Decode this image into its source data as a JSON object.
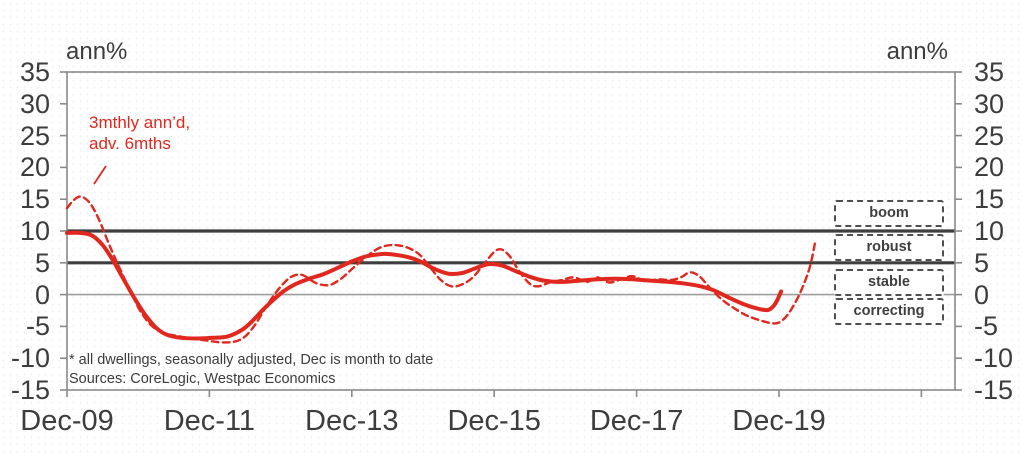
{
  "chart_data": {
    "type": "line",
    "title_left": "ann%",
    "title_right": "ann%",
    "ylim": [
      -15,
      35
    ],
    "y_ticks": [
      35,
      30,
      25,
      20,
      15,
      10,
      5,
      0,
      -5,
      -10,
      -15
    ],
    "x_ticks": [
      {
        "label": "Dec-09",
        "year": 0
      },
      {
        "label": "Dec-11",
        "year": 2
      },
      {
        "label": "Dec-13",
        "year": 4
      },
      {
        "label": "Dec-15",
        "year": 6
      },
      {
        "label": "Dec-17",
        "year": 8
      },
      {
        "label": "Dec-19",
        "year": 10
      },
      {
        "label": "",
        "year": 12
      }
    ],
    "x_unit": "years after Dec-09",
    "reference_lines": [
      {
        "value": 10,
        "weight": "thick"
      },
      {
        "value": 5,
        "weight": "thick"
      },
      {
        "value": 0,
        "weight": "thin"
      }
    ],
    "zones": [
      {
        "label": "boom",
        "center": 12.8
      },
      {
        "label": "robust",
        "center": 7.4
      },
      {
        "label": "stable",
        "center": 1.9
      },
      {
        "label": "correcting",
        "center": -2.7
      }
    ],
    "annotation": {
      "text_lines": [
        "3mthly ann’d,",
        "adv. 6mths"
      ]
    },
    "footnotes": [
      "* all dwellings, seasonally adjusted, Dec is month to date",
      "Sources: CoreLogic, Westpac Economics"
    ],
    "series": [
      {
        "label": "",
        "line": "solid",
        "points": [
          [
            0,
            9.7
          ],
          [
            0.18,
            9.7
          ],
          [
            0.35,
            9.3
          ],
          [
            0.5,
            7.8
          ],
          [
            0.65,
            5.3
          ],
          [
            0.8,
            2.3
          ],
          [
            0.95,
            -0.6
          ],
          [
            1.1,
            -3.2
          ],
          [
            1.25,
            -5.2
          ],
          [
            1.4,
            -6.3
          ],
          [
            1.6,
            -6.8
          ],
          [
            1.85,
            -6.9
          ],
          [
            2.05,
            -6.8
          ],
          [
            2.25,
            -6.6
          ],
          [
            2.45,
            -5.6
          ],
          [
            2.6,
            -4.2
          ],
          [
            2.75,
            -2.4
          ],
          [
            2.9,
            -0.8
          ],
          [
            3.05,
            0.6
          ],
          [
            3.2,
            1.6
          ],
          [
            3.4,
            2.5
          ],
          [
            3.6,
            3.2
          ],
          [
            3.8,
            4.2
          ],
          [
            4.0,
            5.2
          ],
          [
            4.2,
            6.0
          ],
          [
            4.45,
            6.4
          ],
          [
            4.65,
            6.2
          ],
          [
            4.85,
            5.7
          ],
          [
            5.0,
            5.0
          ],
          [
            5.15,
            4.1
          ],
          [
            5.35,
            3.3
          ],
          [
            5.55,
            3.4
          ],
          [
            5.75,
            4.2
          ],
          [
            5.92,
            4.8
          ],
          [
            6.1,
            4.6
          ],
          [
            6.3,
            3.7
          ],
          [
            6.5,
            2.8
          ],
          [
            6.7,
            2.2
          ],
          [
            6.95,
            2.0
          ],
          [
            7.2,
            2.2
          ],
          [
            7.45,
            2.4
          ],
          [
            7.7,
            2.5
          ],
          [
            7.95,
            2.4
          ],
          [
            8.2,
            2.2
          ],
          [
            8.45,
            2.0
          ],
          [
            8.7,
            1.7
          ],
          [
            8.9,
            1.3
          ],
          [
            9.1,
            0.6
          ],
          [
            9.3,
            -0.5
          ],
          [
            9.5,
            -1.5
          ],
          [
            9.7,
            -2.2
          ],
          [
            9.85,
            -2.4
          ],
          [
            9.95,
            -1.4
          ],
          [
            10.03,
            0.5
          ]
        ]
      },
      {
        "label": "3mthly ann’d, adv. 6mths",
        "line": "dashed",
        "points": [
          [
            0,
            13.6
          ],
          [
            0.1,
            14.9
          ],
          [
            0.2,
            15.4
          ],
          [
            0.32,
            14.4
          ],
          [
            0.45,
            11.8
          ],
          [
            0.58,
            8.2
          ],
          [
            0.72,
            4.6
          ],
          [
            0.88,
            0.8
          ],
          [
            1.02,
            -2.4
          ],
          [
            1.18,
            -4.8
          ],
          [
            1.35,
            -6.0
          ],
          [
            1.55,
            -6.5
          ],
          [
            1.75,
            -6.9
          ],
          [
            1.95,
            -7.2
          ],
          [
            2.15,
            -7.5
          ],
          [
            2.35,
            -7.4
          ],
          [
            2.5,
            -6.6
          ],
          [
            2.65,
            -4.6
          ],
          [
            2.78,
            -2.2
          ],
          [
            2.9,
            -0.2
          ],
          [
            3.02,
            1.5
          ],
          [
            3.15,
            2.8
          ],
          [
            3.3,
            3.1
          ],
          [
            3.5,
            1.8
          ],
          [
            3.68,
            1.5
          ],
          [
            3.85,
            2.5
          ],
          [
            4.02,
            4.2
          ],
          [
            4.22,
            6.1
          ],
          [
            4.4,
            7.4
          ],
          [
            4.58,
            7.8
          ],
          [
            4.78,
            7.4
          ],
          [
            4.95,
            6.3
          ],
          [
            5.1,
            4.3
          ],
          [
            5.25,
            2.3
          ],
          [
            5.4,
            1.3
          ],
          [
            5.55,
            1.6
          ],
          [
            5.7,
            2.7
          ],
          [
            5.85,
            4.7
          ],
          [
            6.0,
            6.7
          ],
          [
            6.1,
            7.1
          ],
          [
            6.22,
            6.0
          ],
          [
            6.35,
            3.7
          ],
          [
            6.5,
            1.7
          ],
          [
            6.62,
            1.3
          ],
          [
            6.78,
            1.9
          ],
          [
            6.95,
            2.3
          ],
          [
            7.12,
            2.7
          ],
          [
            7.3,
            2.0
          ],
          [
            7.45,
            2.7
          ],
          [
            7.62,
            1.9
          ],
          [
            7.8,
            2.5
          ],
          [
            7.95,
            2.9
          ],
          [
            8.12,
            2.1
          ],
          [
            8.3,
            2.4
          ],
          [
            8.48,
            2.3
          ],
          [
            8.62,
            2.7
          ],
          [
            8.75,
            3.5
          ],
          [
            8.88,
            2.9
          ],
          [
            9.02,
            1.2
          ],
          [
            9.18,
            -0.6
          ],
          [
            9.35,
            -2.0
          ],
          [
            9.55,
            -3.3
          ],
          [
            9.75,
            -4.1
          ],
          [
            9.9,
            -4.5
          ],
          [
            10.0,
            -4.4
          ],
          [
            10.12,
            -3.2
          ],
          [
            10.24,
            -1.0
          ],
          [
            10.34,
            1.4
          ],
          [
            10.44,
            4.6
          ],
          [
            10.51,
            8.4
          ]
        ]
      }
    ]
  },
  "colors": {
    "red": "#e0281e",
    "text": "#3d3d3d",
    "axis": "#8a8a8a",
    "ref_thick": "#3f3f3f",
    "ref_thin": "#9e9e9e",
    "zone_border": "#4f4f4f"
  }
}
